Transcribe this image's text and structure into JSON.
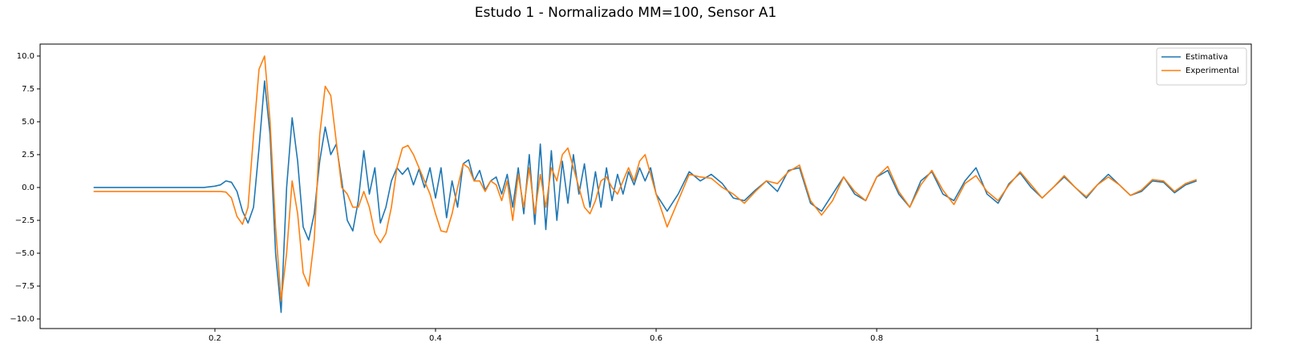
{
  "chart_data": {
    "type": "line",
    "title": "Estudo 1 - Normalizado MM=100, Sensor A1",
    "x": [
      0.09,
      0.1,
      0.11,
      0.12,
      0.13,
      0.14,
      0.15,
      0.16,
      0.17,
      0.18,
      0.19,
      0.2,
      0.205,
      0.21,
      0.215,
      0.22,
      0.225,
      0.23,
      0.235,
      0.24,
      0.245,
      0.25,
      0.255,
      0.26,
      0.265,
      0.27,
      0.275,
      0.28,
      0.285,
      0.29,
      0.295,
      0.3,
      0.305,
      0.31,
      0.315,
      0.32,
      0.325,
      0.33,
      0.335,
      0.34,
      0.345,
      0.35,
      0.355,
      0.36,
      0.365,
      0.37,
      0.375,
      0.38,
      0.385,
      0.39,
      0.395,
      0.4,
      0.405,
      0.41,
      0.415,
      0.42,
      0.425,
      0.43,
      0.435,
      0.44,
      0.445,
      0.45,
      0.455,
      0.46,
      0.465,
      0.47,
      0.475,
      0.48,
      0.485,
      0.49,
      0.495,
      0.5,
      0.505,
      0.51,
      0.515,
      0.52,
      0.525,
      0.53,
      0.535,
      0.54,
      0.545,
      0.55,
      0.555,
      0.56,
      0.565,
      0.57,
      0.575,
      0.58,
      0.585,
      0.59,
      0.595,
      0.6,
      0.61,
      0.62,
      0.63,
      0.64,
      0.65,
      0.66,
      0.67,
      0.68,
      0.69,
      0.7,
      0.71,
      0.72,
      0.73,
      0.74,
      0.75,
      0.76,
      0.77,
      0.78,
      0.79,
      0.8,
      0.81,
      0.82,
      0.83,
      0.84,
      0.85,
      0.86,
      0.87,
      0.88,
      0.89,
      0.9,
      0.91,
      0.92,
      0.93,
      0.94,
      0.95,
      0.96,
      0.97,
      0.98,
      0.99,
      1.0,
      1.01,
      1.02,
      1.03,
      1.04,
      1.05,
      1.06,
      1.07,
      1.08,
      1.09
    ],
    "series": [
      {
        "name": "Estimativa",
        "color": "#1f77b4",
        "values": [
          0,
          0,
          0,
          0,
          0,
          0,
          0,
          0,
          0,
          0,
          0,
          0.1,
          0.2,
          0.5,
          0.4,
          -0.3,
          -1.8,
          -2.7,
          -1.5,
          3,
          8.1,
          4,
          -5,
          -9.5,
          0,
          5.3,
          2,
          -3,
          -4,
          -2,
          2,
          4.6,
          2.5,
          3.3,
          0.5,
          -2.5,
          -3.3,
          -1,
          2.8,
          -0.5,
          1.5,
          -2.7,
          -1.5,
          0.5,
          1.5,
          1.0,
          1.5,
          0.2,
          1.4,
          0,
          1.5,
          -0.8,
          1.5,
          -2.3,
          0.5,
          -1.5,
          1.8,
          2.1,
          0.5,
          1.3,
          -0.2,
          0.5,
          0.8,
          -0.5,
          1.0,
          -1.5,
          1.5,
          -2,
          2.5,
          -2.8,
          3.3,
          -3.2,
          2.8,
          -2.5,
          2.0,
          -1.2,
          2.5,
          -0.5,
          1.8,
          -1.5,
          1.2,
          -1.5,
          1.5,
          -1.0,
          1.0,
          -0.5,
          1.2,
          0.2,
          1.5,
          0.5,
          1.5,
          -0.5,
          -1.8,
          -0.5,
          1.2,
          0.5,
          1.0,
          0.3,
          -0.8,
          -1.0,
          -0.2,
          0.5,
          -0.3,
          1.3,
          1.5,
          -1.2,
          -1.8,
          -0.5,
          0.8,
          -0.5,
          -1.0,
          0.8,
          1.3,
          -0.5,
          -1.5,
          0.5,
          1.2,
          -0.5,
          -1.0,
          0.5,
          1.5,
          -0.5,
          -1.2,
          0.3,
          1.1,
          0,
          -0.8,
          0,
          0.8,
          0,
          -0.8,
          0.2,
          1.0,
          0.2,
          -0.6,
          -0.3,
          0.5,
          0.4,
          -0.4,
          0.2,
          0.5
        ]
      },
      {
        "name": "Experimental",
        "color": "#ff7f0e",
        "values": [
          -0.3,
          -0.3,
          -0.3,
          -0.3,
          -0.3,
          -0.3,
          -0.3,
          -0.3,
          -0.3,
          -0.3,
          -0.3,
          -0.3,
          -0.3,
          -0.35,
          -0.8,
          -2.2,
          -2.8,
          -1.5,
          4,
          9.0,
          10.0,
          5,
          -3,
          -8.6,
          -5,
          0.5,
          -2,
          -6.5,
          -7.5,
          -4,
          4,
          7.7,
          7,
          3.5,
          0,
          -0.5,
          -1.5,
          -1.5,
          -0.3,
          -1.5,
          -3.5,
          -4.2,
          -3.5,
          -1.5,
          1.5,
          3.0,
          3.2,
          2.5,
          1.5,
          0.5,
          -0.5,
          -2,
          -3.3,
          -3.4,
          -2,
          0,
          1.8,
          1.5,
          0.5,
          0.5,
          -0.3,
          0.5,
          0.2,
          -1.0,
          0.5,
          -2.5,
          1.0,
          -1.5,
          1.5,
          -2.0,
          1.0,
          -1.5,
          1.5,
          0.5,
          2.5,
          3.0,
          1.5,
          0,
          -1.5,
          -2.0,
          -1.0,
          0.5,
          0.8,
          0,
          -0.5,
          0.5,
          1.5,
          0.5,
          2.0,
          2.5,
          1.0,
          -0.5,
          -3.0,
          -1.0,
          1.0,
          0.8,
          0.7,
          0,
          -0.5,
          -1.2,
          -0.3,
          0.5,
          0.3,
          1.2,
          1.7,
          -1.0,
          -2.1,
          -1.0,
          0.8,
          -0.3,
          -1.0,
          0.8,
          1.6,
          -0.3,
          -1.5,
          0.2,
          1.3,
          -0.2,
          -1.3,
          0.3,
          0.9,
          -0.3,
          -1.0,
          0.2,
          1.2,
          0.2,
          -0.8,
          0,
          0.9,
          0,
          -0.7,
          0.2,
          0.8,
          0.2,
          -0.6,
          -0.2,
          0.6,
          0.5,
          -0.3,
          0.3,
          0.6
        ]
      }
    ],
    "xlim": [
      0.0415,
      1.1396
    ],
    "xticks": [
      0.2,
      0.4,
      0.6,
      0.8,
      1.0
    ],
    "ylim": [
      -10.73,
      10.91
    ],
    "yticks": [
      {
        "value": -10,
        "label": "−10.0"
      },
      {
        "value": -7.5,
        "label": "−7.5"
      },
      {
        "value": -5,
        "label": "−5.0"
      },
      {
        "value": -2.5,
        "label": "−2.5"
      },
      {
        "value": 0,
        "label": "0.0"
      },
      2.5,
      {
        "value": 5,
        "label": "5.0"
      },
      7.5,
      {
        "value": 10,
        "label": "10.0"
      }
    ],
    "grid": false,
    "legend": "upper-right"
  }
}
